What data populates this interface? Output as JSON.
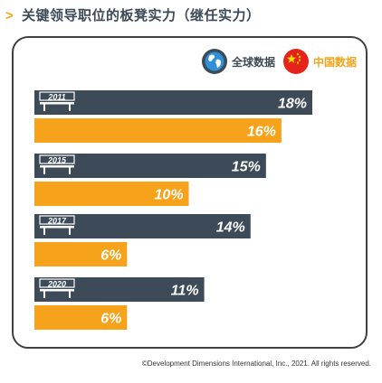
{
  "title": "关键领导职位的板凳实力（继任实力）",
  "legend": [
    {
      "label": "全球数据",
      "icon": "globe-icon",
      "color": "#3d4a57"
    },
    {
      "label": "中国数据",
      "icon": "china-flag-icon",
      "color": "#f7a21b"
    }
  ],
  "chart_data": {
    "type": "bar",
    "orientation": "horizontal",
    "title": "关键领导职位的板凳实力（继任实力）",
    "categories": [
      "2011",
      "2015",
      "2017",
      "2020"
    ],
    "series": [
      {
        "name": "全球数据",
        "values": [
          18,
          15,
          14,
          11
        ],
        "labels": [
          "18%",
          "15%",
          "14%",
          "11%"
        ],
        "color": "#3d4a57"
      },
      {
        "name": "中国数据",
        "values": [
          16,
          10,
          6,
          6
        ],
        "labels": [
          "16%",
          "10%",
          "6%",
          "6%"
        ],
        "color": "#f7a21b"
      }
    ],
    "xlim": [
      0,
      18
    ],
    "grid": false,
    "legend_position": "top-right"
  },
  "copyright": "©Development Dimensions International, Inc., 2021. All rights reserved."
}
